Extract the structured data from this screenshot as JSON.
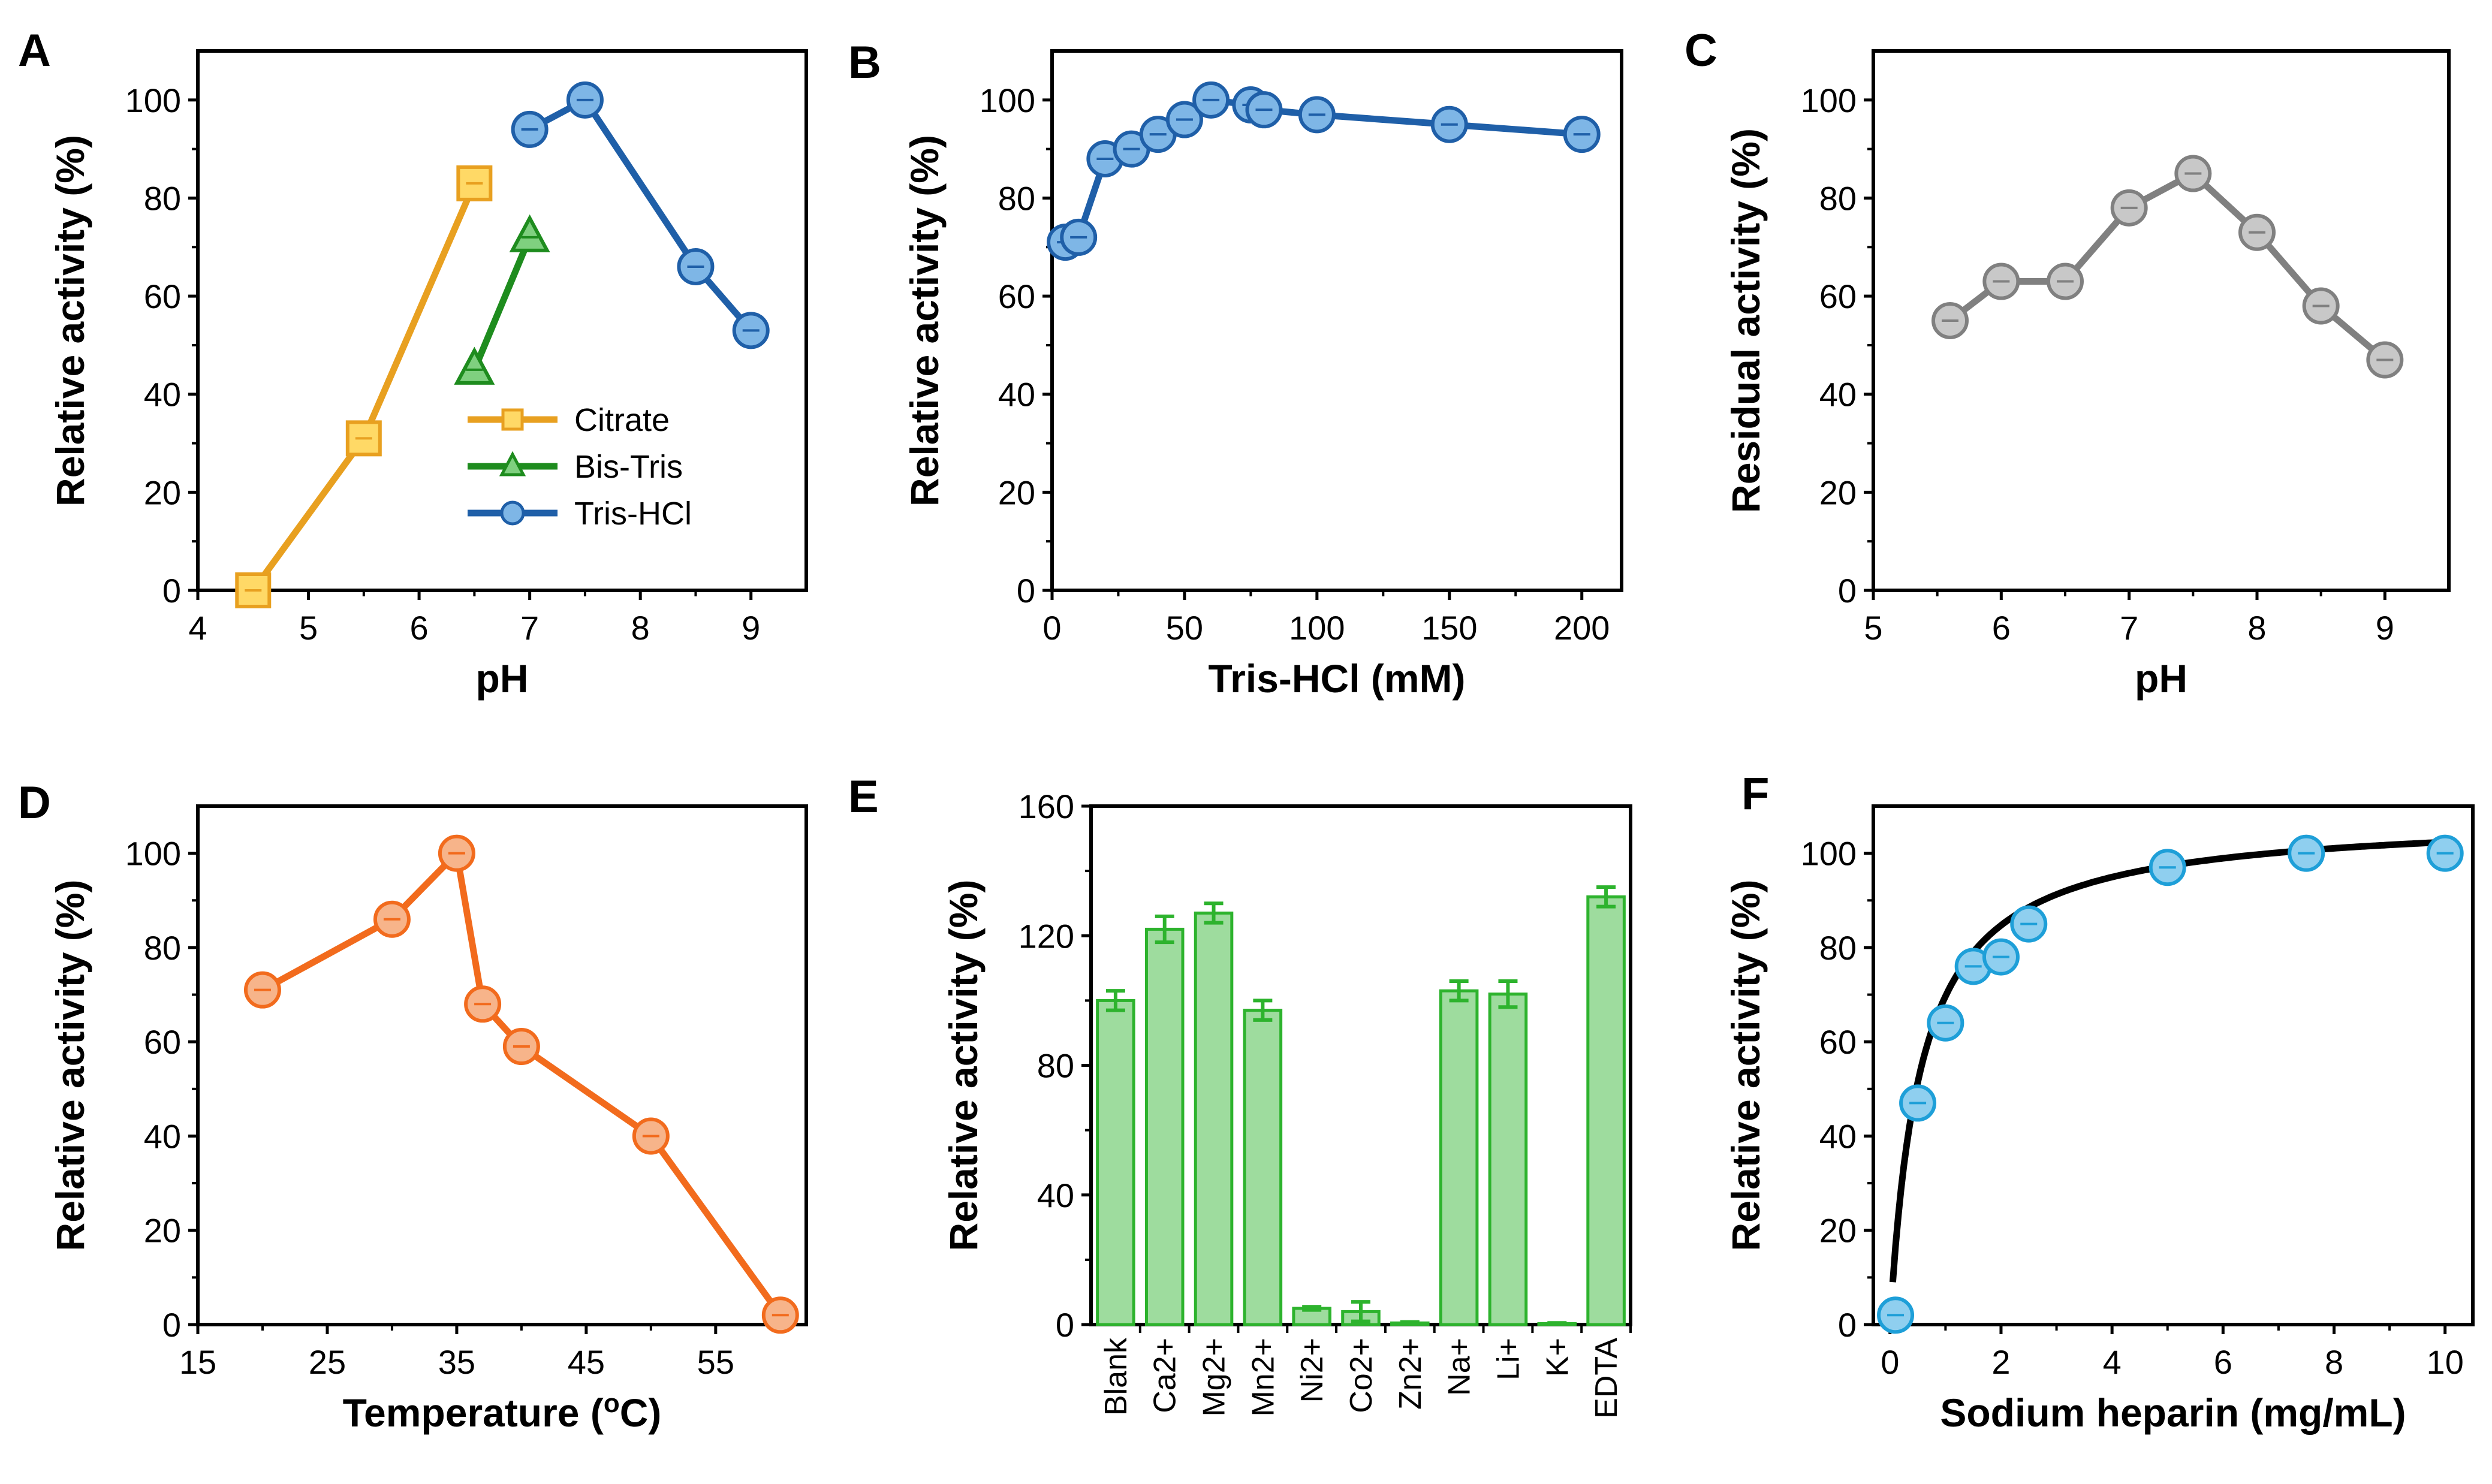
{
  "chart_data": [
    {
      "panel": "A",
      "type": "line",
      "xlabel": "pH",
      "ylabel": "Relative activity (%)",
      "xlim": [
        4,
        9.5
      ],
      "ylim": [
        0,
        110
      ],
      "xticks": [
        "4",
        "5",
        "6",
        "7",
        "8",
        "9"
      ],
      "yticks": [
        "0",
        "20",
        "40",
        "60",
        "80",
        "100"
      ],
      "legend_position": "lower-middle",
      "series": [
        {
          "name": "Citrate",
          "color": "#E8A020",
          "fill": "#FFD966",
          "marker": "square",
          "x": [
            4.5,
            5.5,
            6.5
          ],
          "y": [
            0,
            31,
            83
          ]
        },
        {
          "name": "Bis-Tris",
          "color": "#1E8C1E",
          "fill": "#7FD07F",
          "marker": "triangle",
          "x": [
            6.5,
            7.0
          ],
          "y": [
            45,
            72
          ]
        },
        {
          "name": "Tris-HCl",
          "color": "#1F5FA8",
          "fill": "#7EB6E6",
          "marker": "circle",
          "x": [
            7.0,
            7.5,
            8.5,
            9.0
          ],
          "y": [
            94,
            100,
            66,
            53
          ]
        }
      ]
    },
    {
      "panel": "B",
      "type": "line",
      "xlabel": "Tris-HCl (mM)",
      "ylabel": "Relative activity (%)",
      "xlim": [
        0,
        215
      ],
      "ylim": [
        0,
        110
      ],
      "xticks": [
        "0",
        "50",
        "100",
        "150",
        "200"
      ],
      "yticks": [
        "0",
        "20",
        "40",
        "60",
        "80",
        "100"
      ],
      "series": [
        {
          "name": "Tris-HCl",
          "color": "#1F5FA8",
          "fill": "#7EB6E6",
          "marker": "circle",
          "x": [
            5,
            10,
            20,
            30,
            40,
            50,
            60,
            75,
            80,
            100,
            150,
            200
          ],
          "y": [
            71,
            72,
            88,
            90,
            93,
            96,
            100,
            99,
            98,
            97,
            95,
            93
          ]
        }
      ]
    },
    {
      "panel": "C",
      "type": "line",
      "xlabel": "pH",
      "ylabel": "Residual activity (%)",
      "xlim": [
        5,
        9.5
      ],
      "ylim": [
        0,
        110
      ],
      "xticks": [
        "5",
        "6",
        "7",
        "8",
        "9"
      ],
      "yticks": [
        "0",
        "20",
        "40",
        "60",
        "80",
        "100"
      ],
      "series": [
        {
          "name": "Residual",
          "color": "#808080",
          "fill": "#C8C8C8",
          "marker": "circle",
          "x": [
            5.6,
            6.0,
            6.5,
            7.0,
            7.5,
            8.0,
            8.5,
            9.0
          ],
          "y": [
            55,
            63,
            63,
            78,
            85,
            73,
            58,
            47
          ]
        }
      ]
    },
    {
      "panel": "D",
      "type": "line",
      "xlabel": "Temperature (",
      "xlabel_sup": "o",
      "xlabel_end": "C)",
      "ylabel": "Relative activity (%)",
      "xlim": [
        15,
        62
      ],
      "ylim": [
        0,
        110
      ],
      "xticks": [
        "15",
        "25",
        "35",
        "45",
        "55"
      ],
      "yticks": [
        "0",
        "20",
        "40",
        "60",
        "80",
        "100"
      ],
      "series": [
        {
          "name": "Temperature",
          "color": "#F26B1D",
          "fill": "#F7B48A",
          "marker": "circle",
          "x": [
            20,
            30,
            35,
            37,
            40,
            50,
            60
          ],
          "y": [
            71,
            86,
            100,
            68,
            59,
            40,
            2
          ]
        }
      ]
    },
    {
      "panel": "E",
      "type": "bar",
      "ylabel": "Relative activity (%)",
      "ylim": [
        0,
        160
      ],
      "yticks": [
        "0",
        "40",
        "80",
        "120",
        "160"
      ],
      "categories": [
        "Blank",
        "Ca2+",
        "Mg2+",
        "Mn2+",
        "Ni2+",
        "Co2+",
        "Zn2+",
        "Na+",
        "Li+",
        "K+",
        "EDTA"
      ],
      "values": [
        100,
        122,
        127,
        97,
        5,
        4,
        0.5,
        103,
        102,
        0.3,
        132
      ],
      "errors": [
        3,
        4,
        3,
        3,
        0.5,
        3,
        0.3,
        3,
        4,
        0.2,
        3
      ],
      "color": "#2DB32D",
      "fill": "#9EDC9E"
    },
    {
      "panel": "F",
      "type": "scatter",
      "xlabel": "Sodium heparin (mg/mL)",
      "ylabel": "Relative activity (%)",
      "xlim": [
        -0.3,
        10.5
      ],
      "ylim": [
        0,
        110
      ],
      "xticks": [
        "0",
        "2",
        "4",
        "6",
        "8",
        "10"
      ],
      "yticks": [
        "0",
        "20",
        "40",
        "60",
        "80",
        "100"
      ],
      "fit": "Michaelis-Menten curve",
      "fit_color": "#000000",
      "series": [
        {
          "name": "Sodium heparin",
          "color": "#1E9FD8",
          "fill": "#8FCFEF",
          "marker": "circle",
          "x": [
            0.1,
            0.5,
            1.0,
            1.5,
            2.0,
            2.5,
            5.0,
            7.5,
            10.0
          ],
          "y": [
            2,
            47,
            64,
            76,
            78,
            85,
            97,
            100,
            100
          ]
        }
      ]
    }
  ]
}
